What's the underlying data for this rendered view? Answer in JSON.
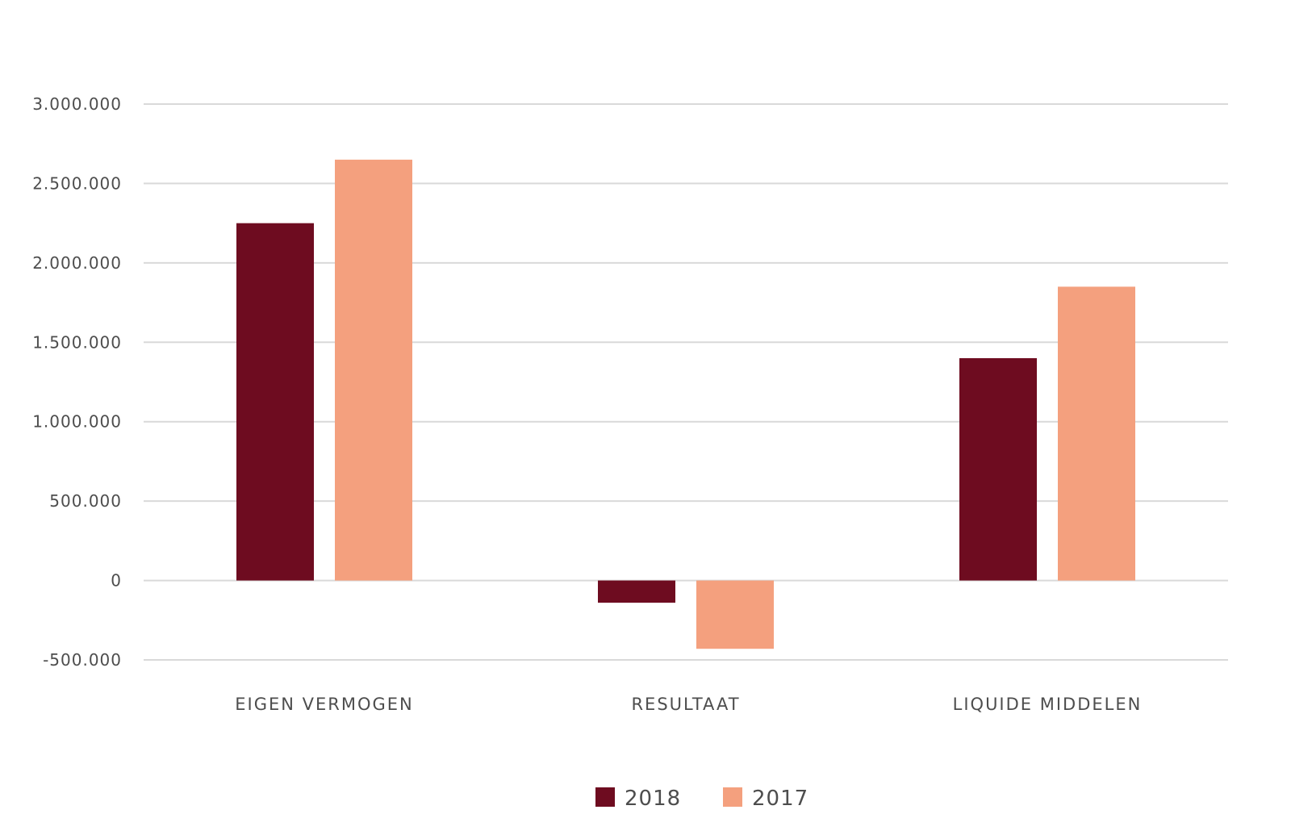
{
  "chart_data": {
    "type": "bar",
    "title": "",
    "xlabel": "",
    "ylabel": "",
    "categories": [
      "EIGEN VERMOGEN",
      "RESULTAAT",
      "LIQUIDE MIDDELEN"
    ],
    "series": [
      {
        "name": "2018",
        "color": "#6e0c20",
        "values": [
          2250000,
          -140000,
          1400000
        ]
      },
      {
        "name": "2017",
        "color": "#f4a07e",
        "values": [
          2650000,
          -430000,
          1850000
        ]
      }
    ],
    "ylim": [
      -500000,
      3000000
    ],
    "yticks": [
      {
        "value": -500000,
        "label": "-500.000"
      },
      {
        "value": 0,
        "label": "0"
      },
      {
        "value": 500000,
        "label": "500.000"
      },
      {
        "value": 1000000,
        "label": "1.000.000"
      },
      {
        "value": 1500000,
        "label": "1.500.000"
      },
      {
        "value": 2000000,
        "label": "2.000.000"
      },
      {
        "value": 2500000,
        "label": "2.500.000"
      },
      {
        "value": 3000000,
        "label": "3.000.000"
      }
    ],
    "grid": true,
    "legend": "bottom"
  }
}
